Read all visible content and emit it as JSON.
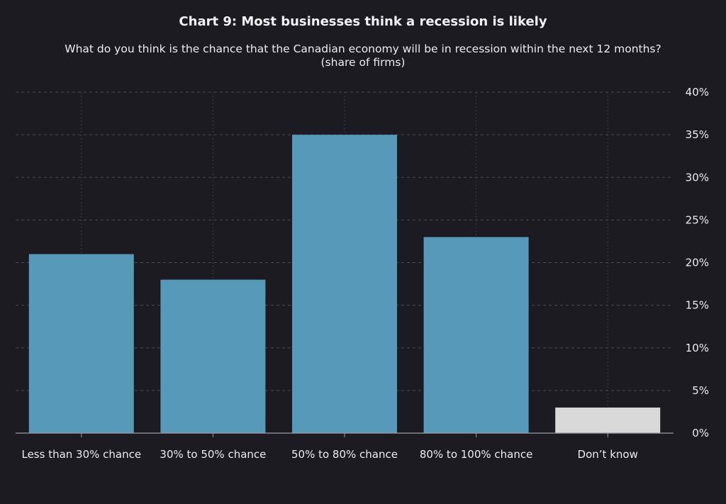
{
  "chart_data": {
    "type": "bar",
    "title": "Chart 9: Most businesses think a recession is likely",
    "subtitle_line1": "What do you think is the chance that the Canadian economy will be in recession within the next 12 months?",
    "subtitle_line2": "(share of firms)",
    "categories": [
      "Less than 30% chance",
      "30% to 50% chance",
      "50% to 80% chance",
      "80% to 100% chance",
      "Don’t know"
    ],
    "values": [
      21,
      18,
      35,
      23,
      3
    ],
    "bar_colors": [
      "#5799b9",
      "#5799b9",
      "#5799b9",
      "#5799b9",
      "#d9d9d9"
    ],
    "ylim": [
      0,
      40
    ],
    "y_ticks": [
      0,
      5,
      10,
      15,
      20,
      25,
      30,
      35,
      40
    ],
    "y_tick_labels": [
      "0%",
      "5%",
      "10%",
      "15%",
      "20%",
      "25%",
      "30%",
      "35%",
      "40%"
    ],
    "y_axis_side": "right",
    "grid": true,
    "xlabel": "",
    "ylabel": ""
  }
}
